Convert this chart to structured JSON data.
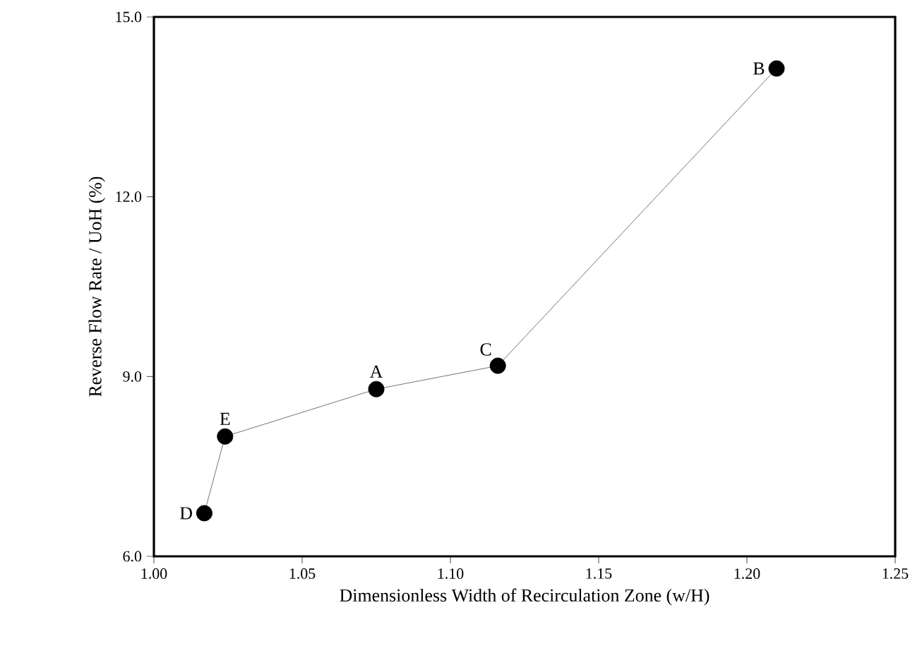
{
  "chart_data": {
    "type": "line",
    "xlabel": "Dimensionless Width of Recirculation Zone (w/H)",
    "ylabel": "Reverse Flow Rate / UoH (%)",
    "x": [
      1.017,
      1.024,
      1.075,
      1.116,
      1.21
    ],
    "series": [
      {
        "color": "#000000",
        "values": [
          6.72,
          8.0,
          8.79,
          9.18,
          14.14
        ]
      }
    ],
    "marker": "circle",
    "line_style": "solid",
    "grid": false,
    "legend": false,
    "xlim": [
      1.0,
      1.25
    ],
    "ylim": [
      6.0,
      15.0
    ],
    "xticks": [
      {
        "value": 1.0,
        "label": "1.00"
      },
      {
        "value": 1.05,
        "label": "1.05"
      },
      {
        "value": 1.1,
        "label": "1.10"
      },
      {
        "value": 1.15,
        "label": "1.15"
      },
      {
        "value": 1.2,
        "label": "1.20"
      },
      {
        "value": 1.25,
        "label": "1.25"
      }
    ],
    "yticks": [
      {
        "value": 6.0,
        "label": "6.0"
      },
      {
        "value": 9.0,
        "label": "9.0"
      },
      {
        "value": 12.0,
        "label": "12.0"
      },
      {
        "value": 15.0,
        "label": "15.0"
      }
    ],
    "annotations": [
      {
        "text": "D",
        "x": 1.017,
        "y": 6.72
      },
      {
        "text": "E",
        "x": 1.024,
        "y": 8.0
      },
      {
        "text": "A",
        "x": 1.075,
        "y": 8.79
      },
      {
        "text": "C",
        "x": 1.116,
        "y": 9.18
      },
      {
        "text": "B",
        "x": 1.21,
        "y": 14.14
      }
    ]
  }
}
